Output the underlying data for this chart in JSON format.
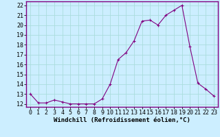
{
  "x": [
    0,
    1,
    2,
    3,
    4,
    5,
    6,
    7,
    8,
    9,
    10,
    11,
    12,
    13,
    14,
    15,
    16,
    17,
    18,
    19,
    20,
    21,
    22,
    23
  ],
  "y": [
    13.0,
    12.1,
    12.1,
    12.4,
    12.2,
    12.0,
    12.0,
    12.0,
    12.0,
    12.5,
    14.0,
    16.5,
    17.2,
    18.4,
    20.4,
    20.5,
    20.0,
    21.0,
    21.5,
    22.0,
    17.8,
    14.1,
    13.5,
    12.8
  ],
  "line_color": "#800080",
  "marker": "+",
  "marker_size": 3,
  "marker_lw": 0.8,
  "line_width": 0.8,
  "bg_color": "#cceeff",
  "grid_color": "#aadddd",
  "xlabel": "Windchill (Refroidissement éolien,°C)",
  "xlabel_fontsize": 6.5,
  "ylabel_ticks": [
    12,
    13,
    14,
    15,
    16,
    17,
    18,
    19,
    20,
    21,
    22
  ],
  "xlim": [
    -0.5,
    23.5
  ],
  "ylim": [
    11.7,
    22.4
  ],
  "tick_fontsize": 6.0,
  "spine_color": "#800080"
}
